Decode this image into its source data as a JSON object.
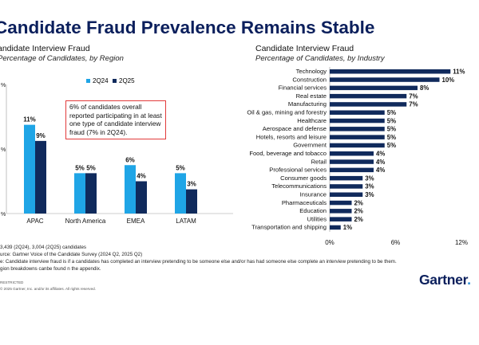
{
  "slide": {
    "title": "Candidate Fraud Prevalence Remains Stable",
    "callout": "6% of candidates overall reported participating in at least one type of candidate interview fraud (7% in 2Q24).",
    "footnotes": [
      "3,439 (2Q24), 3,004 (2Q25) candidates",
      "urce: Gartner Voice of the Candidate Survey (2024 Q2, 2025 Q2)",
      "e: Candidate interview fraud is if a candidates has completed an interview pretending to be someone else and/or has had someone else complete an interview pretending to be them.",
      "gion breakdowns canbe found n the appendix."
    ],
    "restricted": "RESTRICTED",
    "copyright": "© 2025 Gartner, Inc. and/or its affiliates. All rights reserved.",
    "logo": "Gartner"
  },
  "chart_data": [
    {
      "type": "bar",
      "title": "andidate Interview Fraud",
      "subtitle": "Percentage of Candidates, by Region",
      "categories": [
        "APAC",
        "North America",
        "EMEA",
        "LATAM"
      ],
      "series": [
        {
          "name": "2Q24",
          "color": "#1fa5e6",
          "values": [
            11,
            5,
            6,
            5
          ],
          "labels": [
            "11%",
            "5%",
            "6%",
            "5%"
          ]
        },
        {
          "name": "2Q25",
          "color": "#102a5c",
          "values": [
            9,
            5,
            4,
            3
          ],
          "labels": [
            "9%",
            "5%",
            "4%",
            "3%"
          ]
        }
      ],
      "ylim": [
        0,
        16
      ],
      "y_tick_labels": [
        "%",
        "%",
        "%"
      ],
      "legend": "top"
    },
    {
      "type": "bar",
      "orientation": "horizontal",
      "title": "Candidate Interview Fraud",
      "subtitle": "Percentage of Candidates, by Industry",
      "color": "#102a5c",
      "categories": [
        "Technology",
        "Construction",
        "Financial services",
        "Real estate",
        "Manufacturing",
        "Oil & gas, mining and forestry",
        "Healthcare",
        "Aerospace and defense",
        "Hotels, resorts and leisure",
        "Government",
        "Food, beverage and tobacco",
        "Retail",
        "Professional services",
        "Consumer goods",
        "Telecommunications",
        "Insurance",
        "Pharmaceuticals",
        "Education",
        "Utilities",
        "Transportation and shipping"
      ],
      "values": [
        11,
        10,
        8,
        7,
        7,
        5,
        5,
        5,
        5,
        5,
        4,
        4,
        4,
        3,
        3,
        3,
        2,
        2,
        2,
        1
      ],
      "labels": [
        "11%",
        "10%",
        "8%",
        "7%",
        "7%",
        "5%",
        "5%",
        "5%",
        "5%",
        "5%",
        "4%",
        "4%",
        "4%",
        "3%",
        "3%",
        "3%",
        "2%",
        "2%",
        "2%",
        "1%"
      ],
      "xlim": [
        0,
        12
      ],
      "x_tick_labels": [
        "0%",
        "6%",
        "12%"
      ]
    }
  ]
}
